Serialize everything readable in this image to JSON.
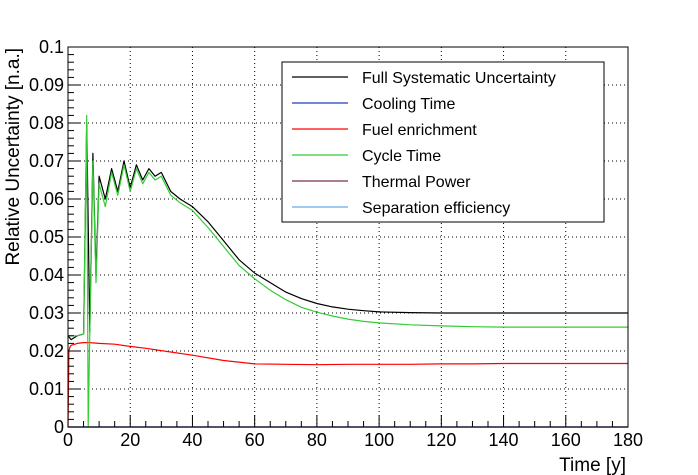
{
  "chart_data": {
    "type": "line",
    "title": "",
    "xlabel": "Time [y]",
    "ylabel": "Relative Uncertainty [n.a.]",
    "xlim": [
      0,
      180
    ],
    "ylim": [
      0,
      0.1
    ],
    "x_ticks": [
      0,
      20,
      40,
      60,
      80,
      100,
      120,
      140,
      160,
      180
    ],
    "x_tick_labels": [
      "0",
      "20",
      "40",
      "60",
      "80",
      "100",
      "120",
      "140",
      "160",
      "180"
    ],
    "y_ticks": [
      0,
      0.01,
      0.02,
      0.03,
      0.04,
      0.05,
      0.06,
      0.07,
      0.08,
      0.09,
      0.1
    ],
    "y_tick_labels": [
      "0",
      "0.01",
      "0.02",
      "0.03",
      "0.04",
      "0.05",
      "0.06",
      "0.07",
      "0.08",
      "0.09",
      "0.1"
    ],
    "grid": true,
    "legend_position": "top-right",
    "series": [
      {
        "name": "Full Systematic Uncertainty",
        "color": "#000000",
        "x": [
          0,
          1,
          3,
          5,
          6,
          7,
          8,
          9,
          10,
          12,
          14,
          16,
          18,
          20,
          22,
          24,
          26,
          28,
          30,
          33,
          36,
          40,
          45,
          50,
          55,
          60,
          65,
          70,
          75,
          80,
          85,
          90,
          95,
          100,
          110,
          120,
          130,
          140,
          150,
          160,
          170,
          180
        ],
        "y": [
          0.024,
          0.023,
          0.024,
          0.0245,
          0.08,
          0.025,
          0.072,
          0.04,
          0.066,
          0.06,
          0.068,
          0.062,
          0.07,
          0.063,
          0.069,
          0.065,
          0.068,
          0.066,
          0.067,
          0.062,
          0.06,
          0.058,
          0.054,
          0.049,
          0.044,
          0.0405,
          0.038,
          0.0355,
          0.0338,
          0.0325,
          0.0316,
          0.031,
          0.0306,
          0.0303,
          0.0301,
          0.03,
          0.03,
          0.03,
          0.03,
          0.03,
          0.03,
          0.03
        ]
      },
      {
        "name": "Cooling Time",
        "color": "#1f3fbf",
        "x": [
          0,
          180
        ],
        "y": [
          0,
          0
        ]
      },
      {
        "name": "Fuel enrichment",
        "color": "#ff0000",
        "x": [
          0,
          0.3,
          0.6,
          1,
          3,
          5,
          7,
          10,
          15,
          20,
          25,
          30,
          40,
          50,
          60,
          70,
          80,
          90,
          100,
          110,
          120,
          130,
          140,
          150,
          160,
          170,
          180
        ],
        "y": [
          0,
          0.02,
          0.021,
          0.0215,
          0.022,
          0.0222,
          0.0222,
          0.022,
          0.0218,
          0.0212,
          0.0207,
          0.0201,
          0.0189,
          0.0175,
          0.0166,
          0.0165,
          0.0164,
          0.0165,
          0.0165,
          0.0165,
          0.0166,
          0.0166,
          0.0167,
          0.0167,
          0.0167,
          0.0167,
          0.0167
        ]
      },
      {
        "name": "Cycle Time",
        "color": "#33cc33",
        "x": [
          0,
          3,
          5,
          6,
          6.5,
          7,
          8,
          9,
          10,
          12,
          14,
          16,
          18,
          20,
          22,
          24,
          26,
          28,
          30,
          33,
          36,
          40,
          45,
          50,
          55,
          60,
          65,
          70,
          75,
          80,
          85,
          90,
          95,
          100,
          110,
          120,
          130,
          140,
          150,
          160,
          170,
          180
        ],
        "y": [
          0.024,
          0.024,
          0.0245,
          0.082,
          0,
          0.025,
          0.07,
          0.038,
          0.064,
          0.058,
          0.067,
          0.061,
          0.069,
          0.062,
          0.068,
          0.064,
          0.067,
          0.065,
          0.066,
          0.061,
          0.059,
          0.057,
          0.0525,
          0.0475,
          0.0425,
          0.039,
          0.036,
          0.0335,
          0.0315,
          0.0302,
          0.0292,
          0.0284,
          0.0278,
          0.0274,
          0.0269,
          0.0266,
          0.0264,
          0.0263,
          0.0263,
          0.0263,
          0.0263,
          0.0263
        ]
      },
      {
        "name": "Thermal Power",
        "color": "#7f2a55",
        "x": [
          0,
          180
        ],
        "y": [
          0,
          0
        ]
      },
      {
        "name": "Separation efficiency",
        "color": "#66aaee",
        "x": [
          0,
          180
        ],
        "y": [
          0,
          0
        ]
      }
    ]
  }
}
